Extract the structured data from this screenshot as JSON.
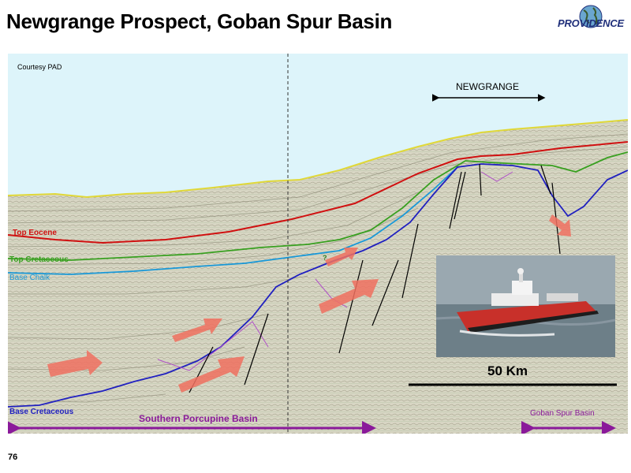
{
  "slide": {
    "title": "Newgrange Prospect, Goban Spur Basin",
    "page_number": "76"
  },
  "logo": {
    "text": "PROVIDENCE"
  },
  "section": {
    "courtesy": "Courtesy PAD",
    "prospect_label": "NEWGRANGE",
    "scale_label": "50 Km",
    "question_mark": "?"
  },
  "horizons": [
    {
      "name": "Top Eocene",
      "color": "#d01010"
    },
    {
      "name": "Top Cretaceous",
      "color": "#38a020"
    },
    {
      "name": "Base Chalk",
      "color": "#1898d8"
    },
    {
      "name": "Base Cretaceous",
      "color": "#2020c0"
    }
  ],
  "basins": {
    "left": "Southern Porcupine Basin",
    "right": "Goban Spur Basin",
    "color": "#8a1a9a"
  },
  "colors": {
    "sea": "#ddf4fa",
    "seismic": "#d8d6c4",
    "arrow": "#f07060",
    "ship_hull": "#c8302a"
  }
}
